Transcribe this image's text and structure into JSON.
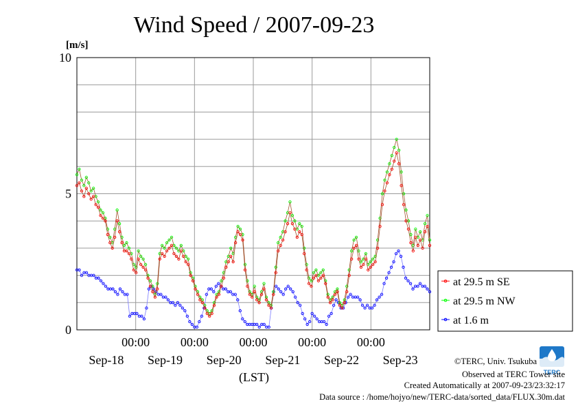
{
  "chart_data": {
    "type": "line",
    "title": "Wind Speed / 2007-09-23",
    "unit_label": "[m/s]",
    "xlabel": "(LST)",
    "ylim": [
      0,
      10
    ],
    "yticks": [
      0,
      5,
      10
    ],
    "xlim_hours": [
      0,
      144
    ],
    "time_ticks": [
      "00:00",
      "00:00",
      "00:00",
      "00:00",
      "00:00"
    ],
    "date_labels": [
      "Sep-18",
      "Sep-19",
      "Sep-20",
      "Sep-21",
      "Sep-22",
      "Sep-23"
    ],
    "grid": true,
    "legend_position": "right",
    "series": [
      {
        "name": "at 29.5 m SE",
        "color": "#ff0000",
        "values": [
          5.3,
          5.4,
          5.1,
          4.9,
          5.2,
          5.0,
          4.8,
          4.9,
          4.6,
          4.5,
          4.2,
          4.1,
          4.0,
          3.5,
          3.2,
          3.0,
          3.4,
          4.0,
          3.6,
          3.2,
          2.9,
          2.9,
          2.8,
          2.6,
          2.2,
          2.1,
          2.6,
          2.4,
          2.3,
          2.2,
          1.9,
          1.6,
          1.4,
          1.2,
          1.5,
          2.6,
          2.8,
          2.7,
          2.9,
          3.0,
          3.1,
          2.8,
          2.7,
          2.6,
          2.9,
          2.7,
          2.5,
          2.4,
          2.0,
          1.8,
          1.5,
          1.3,
          1.1,
          1.0,
          0.8,
          0.6,
          0.5,
          0.6,
          0.9,
          1.2,
          1.3,
          1.6,
          1.9,
          2.3,
          2.5,
          2.7,
          2.5,
          3.2,
          3.6,
          3.5,
          3.3,
          2.2,
          1.6,
          1.3,
          1.2,
          1.4,
          1.1,
          1.0,
          1.3,
          1.5,
          1.1,
          0.9,
          0.8,
          1.3,
          2.1,
          2.9,
          3.1,
          3.3,
          3.6,
          3.9,
          4.3,
          3.9,
          3.7,
          3.4,
          3.6,
          3.5,
          2.8,
          2.2,
          1.7,
          1.6,
          1.9,
          2.0,
          1.8,
          1.9,
          2.0,
          1.7,
          1.2,
          1.0,
          1.1,
          1.3,
          1.4,
          0.9,
          0.8,
          1.0,
          1.4,
          2.0,
          2.6,
          3.0,
          3.1,
          2.6,
          2.3,
          2.4,
          2.6,
          2.2,
          2.3,
          2.4,
          2.5,
          3.0,
          3.8,
          4.6,
          5.1,
          5.4,
          5.7,
          5.9,
          6.2,
          6.5,
          6.1,
          5.3,
          4.6,
          4.0,
          3.7,
          3.2,
          2.9,
          3.4,
          3.1,
          3.3,
          3.0,
          3.6,
          3.8,
          3.1
        ]
      },
      {
        "name": "at 29.5 m NW",
        "color": "#00ff00",
        "values": [
          5.7,
          5.9,
          5.5,
          5.3,
          5.6,
          5.4,
          5.1,
          5.2,
          4.9,
          4.7,
          4.4,
          4.3,
          4.1,
          3.7,
          3.4,
          3.2,
          3.7,
          4.4,
          3.9,
          3.4,
          3.1,
          3.2,
          3.0,
          2.8,
          2.4,
          2.3,
          2.9,
          2.7,
          2.6,
          2.4,
          2.0,
          1.8,
          1.6,
          1.3,
          1.7,
          2.8,
          3.1,
          3.0,
          3.2,
          3.3,
          3.4,
          3.1,
          3.0,
          2.9,
          3.1,
          2.9,
          2.7,
          2.6,
          2.1,
          1.9,
          1.6,
          1.4,
          1.2,
          1.1,
          0.9,
          0.7,
          0.6,
          0.7,
          1.0,
          1.3,
          1.4,
          1.8,
          2.1,
          2.5,
          2.7,
          3.0,
          2.8,
          3.4,
          3.8,
          3.7,
          3.5,
          2.4,
          1.8,
          1.4,
          1.3,
          1.6,
          1.2,
          1.1,
          1.4,
          1.7,
          1.2,
          1.0,
          0.9,
          1.4,
          2.3,
          3.2,
          3.4,
          3.6,
          4.0,
          4.3,
          4.7,
          4.2,
          4.0,
          3.7,
          3.9,
          3.8,
          3.0,
          2.4,
          1.9,
          1.8,
          2.1,
          2.2,
          2.0,
          2.1,
          2.2,
          1.8,
          1.3,
          1.1,
          1.2,
          1.4,
          1.5,
          1.0,
          0.9,
          1.1,
          1.6,
          2.2,
          2.9,
          3.3,
          3.4,
          2.9,
          2.5,
          2.6,
          2.8,
          2.4,
          2.5,
          2.6,
          2.7,
          3.3,
          4.1,
          5.0,
          5.5,
          5.8,
          6.1,
          6.4,
          6.7,
          7.0,
          6.6,
          5.8,
          5.0,
          4.4,
          4.0,
          3.5,
          3.1,
          3.7,
          3.4,
          3.6,
          3.3,
          3.9,
          4.2,
          3.3
        ]
      },
      {
        "name": "at 1.6 m",
        "color": "#0000ff",
        "values": [
          2.2,
          2.2,
          2.0,
          2.1,
          2.1,
          2.0,
          2.0,
          2.0,
          1.9,
          1.9,
          1.8,
          1.7,
          1.6,
          1.5,
          1.5,
          1.5,
          1.4,
          1.3,
          1.5,
          1.4,
          1.3,
          1.3,
          0.5,
          0.6,
          0.6,
          0.6,
          0.5,
          0.5,
          0.4,
          0.8,
          1.5,
          1.6,
          1.5,
          1.4,
          1.3,
          1.3,
          1.2,
          1.2,
          1.1,
          1.0,
          1.0,
          0.9,
          1.0,
          0.9,
          0.8,
          0.7,
          0.5,
          0.3,
          0.2,
          0.1,
          0.1,
          0.3,
          0.5,
          0.8,
          1.3,
          1.5,
          1.5,
          1.4,
          1.6,
          1.7,
          1.6,
          1.5,
          1.5,
          1.4,
          1.4,
          1.3,
          1.3,
          1.1,
          0.7,
          0.4,
          0.3,
          0.2,
          0.2,
          0.2,
          0.2,
          0.2,
          0.1,
          0.2,
          0.2,
          0.1,
          0.1,
          0.8,
          1.4,
          1.6,
          1.5,
          1.4,
          1.3,
          1.5,
          1.6,
          1.5,
          1.4,
          1.2,
          1.0,
          0.9,
          0.6,
          0.4,
          0.2,
          0.3,
          0.6,
          0.5,
          0.4,
          0.3,
          0.3,
          0.3,
          0.2,
          0.5,
          0.6,
          0.9,
          1.1,
          1.0,
          0.8,
          0.8,
          1.0,
          1.2,
          1.3,
          1.2,
          1.2,
          1.2,
          1.1,
          0.9,
          0.8,
          0.9,
          0.8,
          0.8,
          0.9,
          1.1,
          1.2,
          1.3,
          1.7,
          1.9,
          2.1,
          2.3,
          2.5,
          2.8,
          2.9,
          2.7,
          2.3,
          1.9,
          1.8,
          1.7,
          1.5,
          1.6,
          1.6,
          1.7,
          1.6,
          1.6,
          1.5,
          1.4
        ]
      }
    ]
  },
  "credits": [
    "©TERC, Univ. Tsukuba",
    "Observed at TERC Tower site",
    "Created Automatically at 2007-09-23/23:32:17",
    "Data source : /home/hojyo/new/TERC-data/sorted_data/FLUX.30m.dat"
  ],
  "logo_text": "TERC"
}
